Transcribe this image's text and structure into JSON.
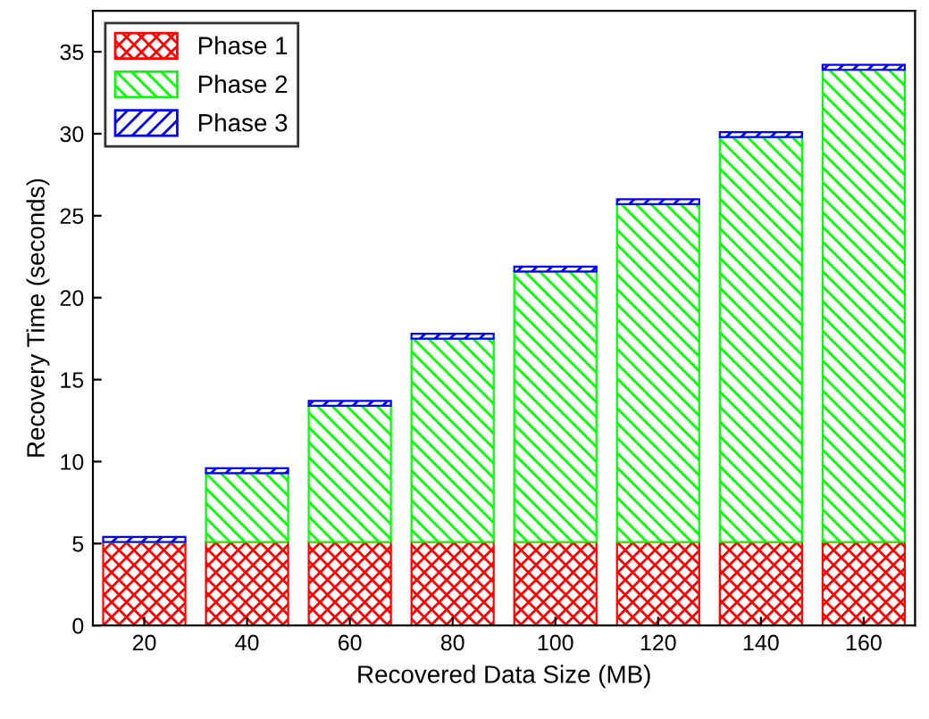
{
  "chart_data": {
    "type": "bar",
    "stacked": true,
    "xlabel": "Recovered Data Size (MB)",
    "ylabel": "Recovery Time (seconds)",
    "categories": [
      "20",
      "40",
      "60",
      "80",
      "100",
      "120",
      "140",
      "160"
    ],
    "series": [
      {
        "name": "Phase 1",
        "color": "#ff0000",
        "values": [
          5.1,
          5.1,
          5.1,
          5.1,
          5.1,
          5.1,
          5.1,
          5.1
        ]
      },
      {
        "name": "Phase 2",
        "color": "#00ff00",
        "values": [
          null,
          4.2,
          8.3,
          12.4,
          16.5,
          20.6,
          24.7,
          28.8
        ]
      },
      {
        "name": "Phase 3",
        "color": "#0000ff",
        "values": [
          0.3,
          0.3,
          0.3,
          0.3,
          0.3,
          0.3,
          0.3,
          0.3
        ]
      }
    ],
    "ylim": [
      0,
      37.5
    ],
    "yticks": [
      0,
      5,
      10,
      15,
      20,
      25,
      30,
      35
    ],
    "grid": false,
    "legend": "top left"
  }
}
